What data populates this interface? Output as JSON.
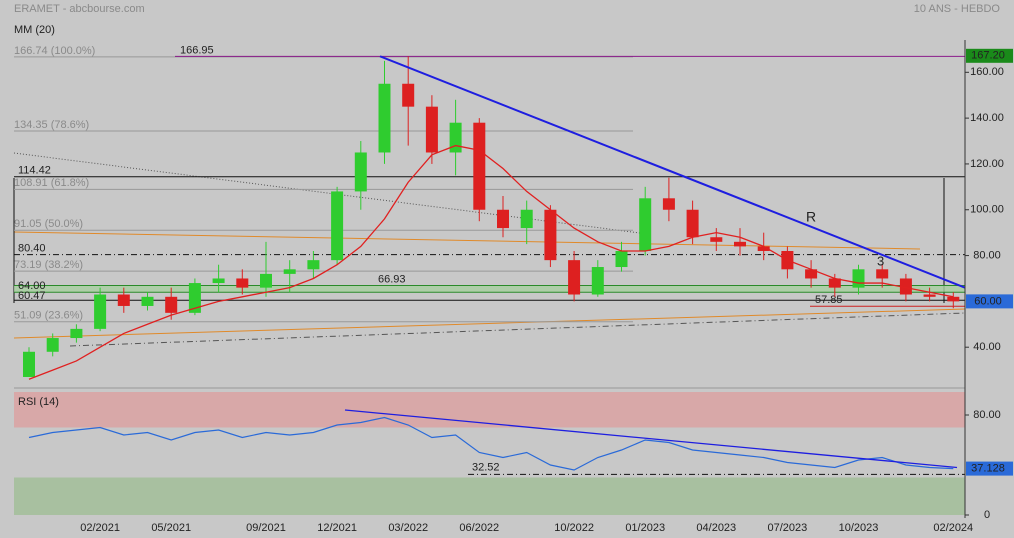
{
  "chart_data": [
    {
      "type": "candlestick",
      "title": "ERAMET - abcbourse.com",
      "subtitle": "10 ANS - HEBDO",
      "x": [
        null,
        null,
        null,
        "02/2021",
        null,
        null,
        "05/2021",
        null,
        null,
        null,
        "09/2021",
        null,
        null,
        "12/2021",
        null,
        null,
        "03/2022",
        null,
        null,
        "06/2022",
        null,
        null,
        null,
        "10/2022",
        null,
        null,
        "01/2023",
        null,
        null,
        "04/2023",
        null,
        null,
        "07/2023",
        null,
        null,
        "10/2023",
        null,
        null,
        null,
        "02/2024"
      ],
      "open": [
        27,
        38,
        44,
        48,
        63,
        58,
        62,
        55,
        68,
        70,
        66,
        72,
        74,
        78,
        108,
        125,
        155,
        145,
        125,
        138,
        100,
        92,
        100,
        78,
        63,
        75,
        82,
        105,
        100,
        88,
        86,
        84,
        82,
        74,
        70,
        66,
        74,
        70,
        63,
        62
      ],
      "high": [
        40,
        46,
        50,
        66,
        66,
        64,
        66,
        70,
        76,
        74,
        86,
        78,
        82,
        110,
        130,
        165,
        167,
        150,
        148,
        140,
        106,
        104,
        102,
        82,
        78,
        86,
        110,
        114,
        104,
        92,
        92,
        90,
        84,
        78,
        72,
        76,
        76,
        72,
        66,
        64
      ],
      "low": [
        27,
        36,
        42,
        47,
        55,
        56,
        52,
        54,
        64,
        63,
        62,
        64,
        70,
        76,
        100,
        120,
        128,
        120,
        115,
        95,
        88,
        85,
        75,
        60,
        62,
        73,
        80,
        95,
        85,
        82,
        80,
        78,
        70,
        66,
        62,
        63,
        66,
        60,
        60,
        57
      ],
      "close": [
        38,
        44,
        48,
        63,
        58,
        62,
        55,
        68,
        70,
        66,
        72,
        74,
        78,
        108,
        125,
        155,
        145,
        125,
        138,
        100,
        92,
        100,
        78,
        63,
        75,
        82,
        105,
        100,
        88,
        86,
        84,
        82,
        74,
        70,
        66,
        74,
        70,
        63,
        62,
        60
      ],
      "up_color": "#2fcc2f",
      "down_color": "#dd2020",
      "series": [
        {
          "name": "MM (20)",
          "color": "#e02020",
          "values": [
            26,
            30,
            34,
            40,
            46,
            50,
            54,
            57,
            60,
            62,
            64,
            66,
            70,
            76,
            84,
            96,
            112,
            124,
            128,
            126,
            118,
            108,
            100,
            92,
            86,
            82,
            82,
            84,
            88,
            90,
            88,
            84,
            78,
            74,
            70,
            68,
            68,
            66,
            64,
            62
          ]
        }
      ],
      "ylim": [
        23.5,
        174.1
      ],
      "yticks": [
        {
          "value": 160,
          "label": "160.00"
        },
        {
          "value": 140,
          "label": "140.00"
        },
        {
          "value": 120,
          "label": "120.00"
        },
        {
          "value": 100,
          "label": "100.00"
        },
        {
          "value": 80,
          "label": "80.00"
        },
        {
          "value": 40,
          "label": "40.00"
        }
      ],
      "fib": [
        {
          "value": 166.74,
          "label": "166.74  (100.0%)"
        },
        {
          "value": 134.35,
          "label": "134.35  (78.6%)"
        },
        {
          "value": 108.91,
          "label": "108.91  (61.8%)"
        },
        {
          "value": 91.05,
          "label": "91.05  (50.0%)"
        },
        {
          "value": 73.19,
          "label": "73.19  (38.2%)"
        },
        {
          "value": 51.09,
          "label": "51.09  (23.6%)"
        }
      ],
      "levels": [
        {
          "value": 166.95,
          "label": "166.95",
          "color": "#8a1a8a"
        },
        {
          "value": 114.42,
          "label": "114.42",
          "color": "#111111"
        },
        {
          "value": 80.4,
          "label": "80.40",
          "color": "#111111"
        },
        {
          "value": 66.93,
          "label": "66.93",
          "color": "#2a8a2a"
        },
        {
          "value": 64.0,
          "label": "64.00",
          "color": "#2a8a2a"
        },
        {
          "value": 60.47,
          "label": "60.47",
          "color": "#111111"
        },
        {
          "value": 57.85,
          "label": "57.85",
          "color": "#cc2020"
        }
      ],
      "trendline": {
        "label": "R",
        "color": "#1e1ee0",
        "values": [
          167,
          66
        ]
      },
      "annotations": [
        "3"
      ],
      "price_tags": [
        {
          "value": 167.2,
          "label": "167.20",
          "color": "#1a8a1a"
        },
        {
          "value": 60.0,
          "label": "60.00",
          "color": "#2a6ad8"
        }
      ]
    },
    {
      "type": "line",
      "title": "RSI (14)",
      "series": [
        {
          "name": "RSI (14)",
          "color": "#2a6ad8",
          "values": [
            62,
            66,
            68,
            70,
            64,
            66,
            60,
            66,
            68,
            62,
            66,
            64,
            66,
            72,
            74,
            78,
            72,
            62,
            64,
            50,
            46,
            50,
            40,
            36,
            46,
            52,
            60,
            58,
            52,
            50,
            48,
            46,
            42,
            40,
            38,
            44,
            46,
            40,
            38,
            37.128
          ]
        }
      ],
      "ylim": [
        0,
        98.4
      ],
      "yticks": [
        {
          "value": 80,
          "label": "80.00"
        },
        0
      ],
      "overbought": 70,
      "oversold": 30,
      "levels": [
        {
          "value": 32.52,
          "label": "32.52"
        }
      ],
      "trendline": {
        "color": "#1e1ee0",
        "values": [
          84,
          38
        ]
      }
    }
  ]
}
